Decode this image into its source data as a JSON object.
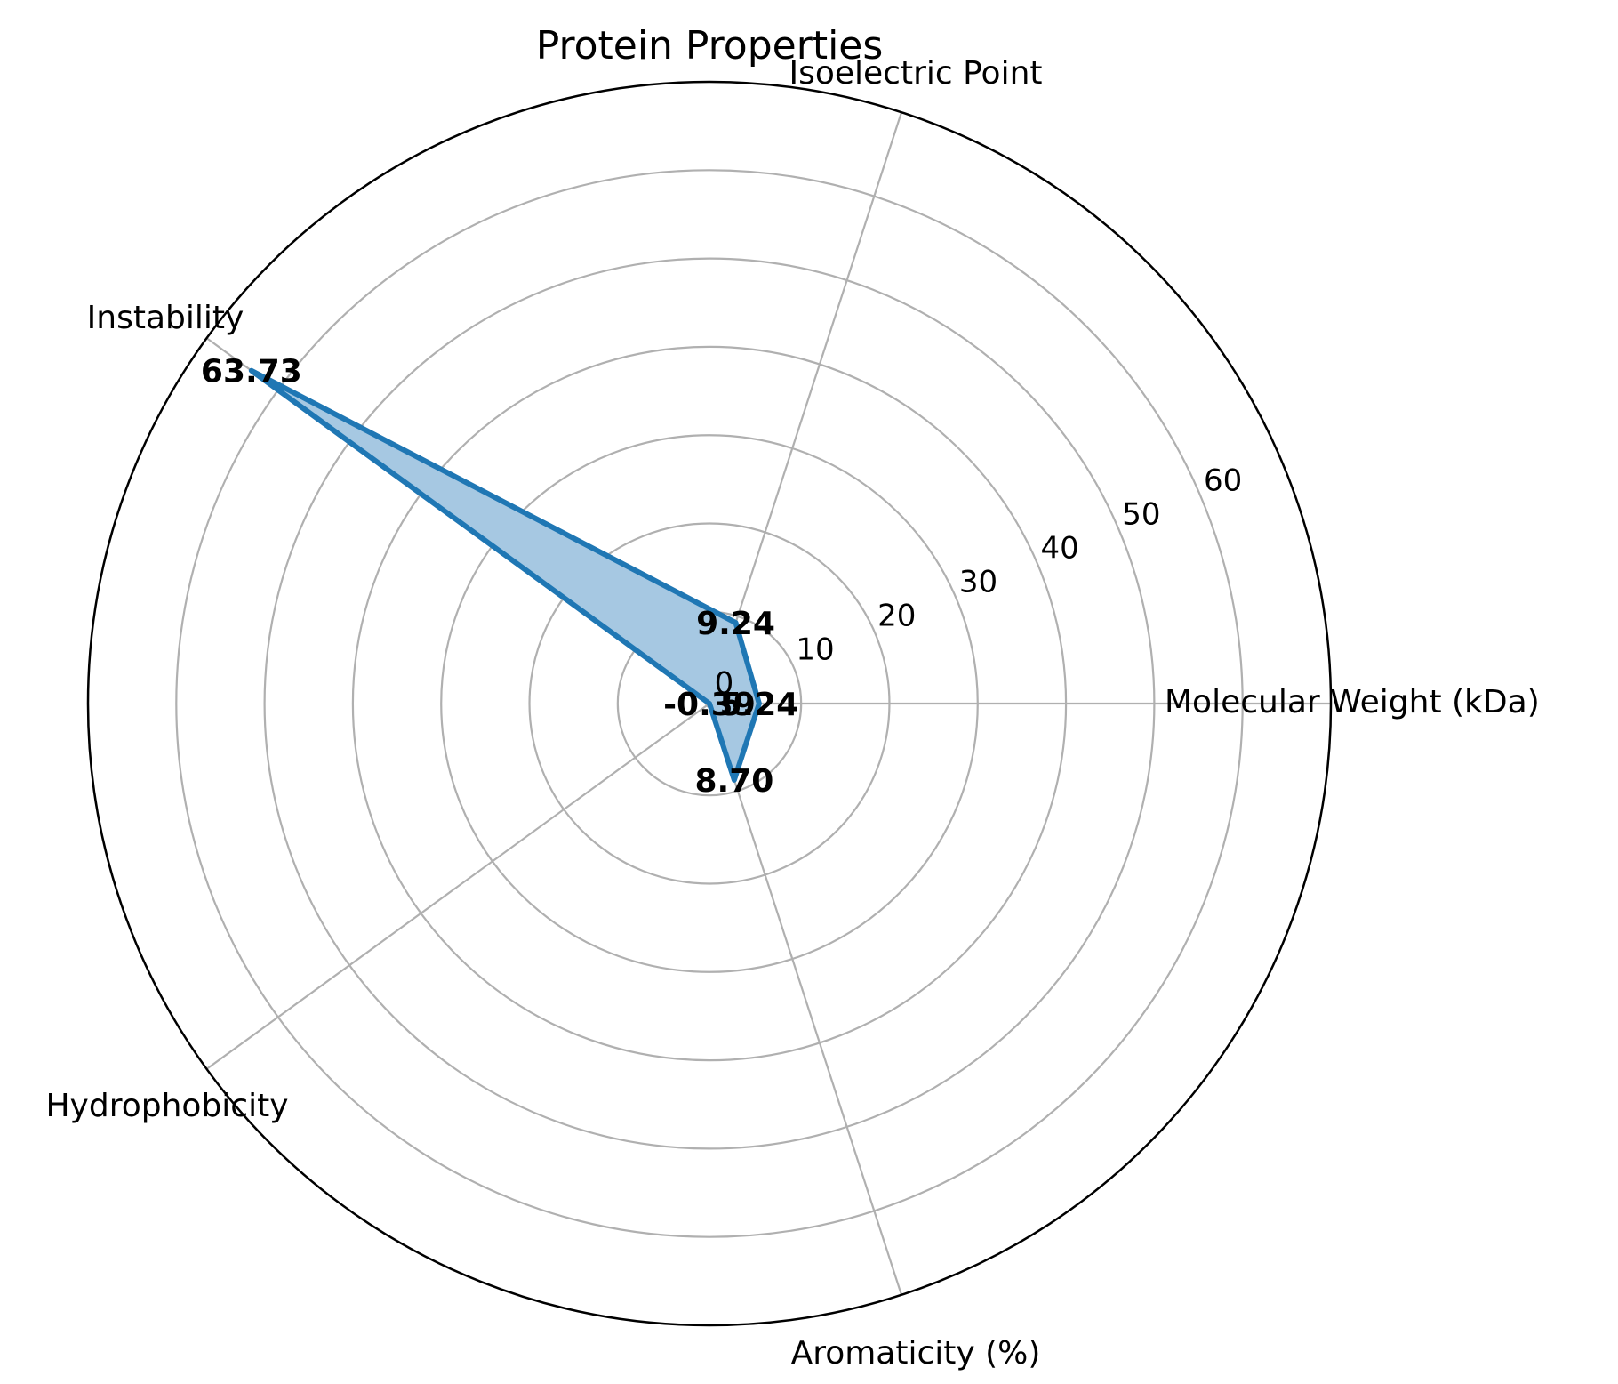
{
  "chart_data": {
    "type": "radar",
    "title": "Protein Properties",
    "categories": [
      "Molecular Weight (kDa)",
      "Isoelectric Point",
      "Instability",
      "Hydrophobicity",
      "Aromaticity (%)"
    ],
    "values": [
      5.24,
      9.24,
      63.73,
      -0.39,
      8.7
    ],
    "value_labels": [
      "5.24",
      "9.24",
      "63.73",
      "-0.39",
      "8.70"
    ],
    "rlim": [
      -0.39,
      70
    ],
    "rticks": [
      0,
      10,
      20,
      30,
      40,
      50,
      60
    ],
    "rtick_labels": [
      "0",
      "10",
      "20",
      "30",
      "40",
      "50",
      "60"
    ],
    "grid": true,
    "colors": {
      "line": "#1f77b4",
      "fill": "#a6c8e2",
      "grid": "#b0b0b0",
      "frame": "#000000"
    }
  }
}
